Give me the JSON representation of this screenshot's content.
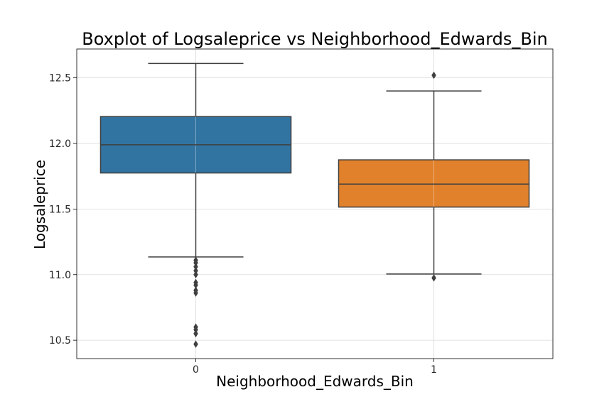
{
  "chart_data": {
    "type": "box",
    "title": "Boxplot of Logsaleprice vs Neighborhood_Edwards_Bin",
    "xlabel": "Neighborhood_Edwards_Bin",
    "ylabel": "Logsaleprice",
    "categories": [
      "0",
      "1"
    ],
    "ylim": [
      10.36,
      12.72
    ],
    "yticks": [
      10.5,
      11.0,
      11.5,
      12.0,
      12.5
    ],
    "ytick_labels": [
      "10.5",
      "11.0",
      "11.5",
      "12.0",
      "12.5"
    ],
    "grid": true,
    "boxes": [
      {
        "category": "0",
        "color": "#3274a1",
        "whisker_low": 11.135,
        "q1": 11.775,
        "median": 11.99,
        "q3": 12.205,
        "whisker_high": 12.61,
        "outliers": [
          11.11,
          11.09,
          11.06,
          11.03,
          11.0,
          10.94,
          10.92,
          10.88,
          10.86,
          10.6,
          10.58,
          10.55,
          10.47
        ]
      },
      {
        "category": "1",
        "color": "#e1812c",
        "whisker_low": 11.005,
        "q1": 11.515,
        "median": 11.69,
        "q3": 11.875,
        "whisker_high": 12.4,
        "outliers": [
          12.52,
          10.975
        ]
      }
    ]
  }
}
